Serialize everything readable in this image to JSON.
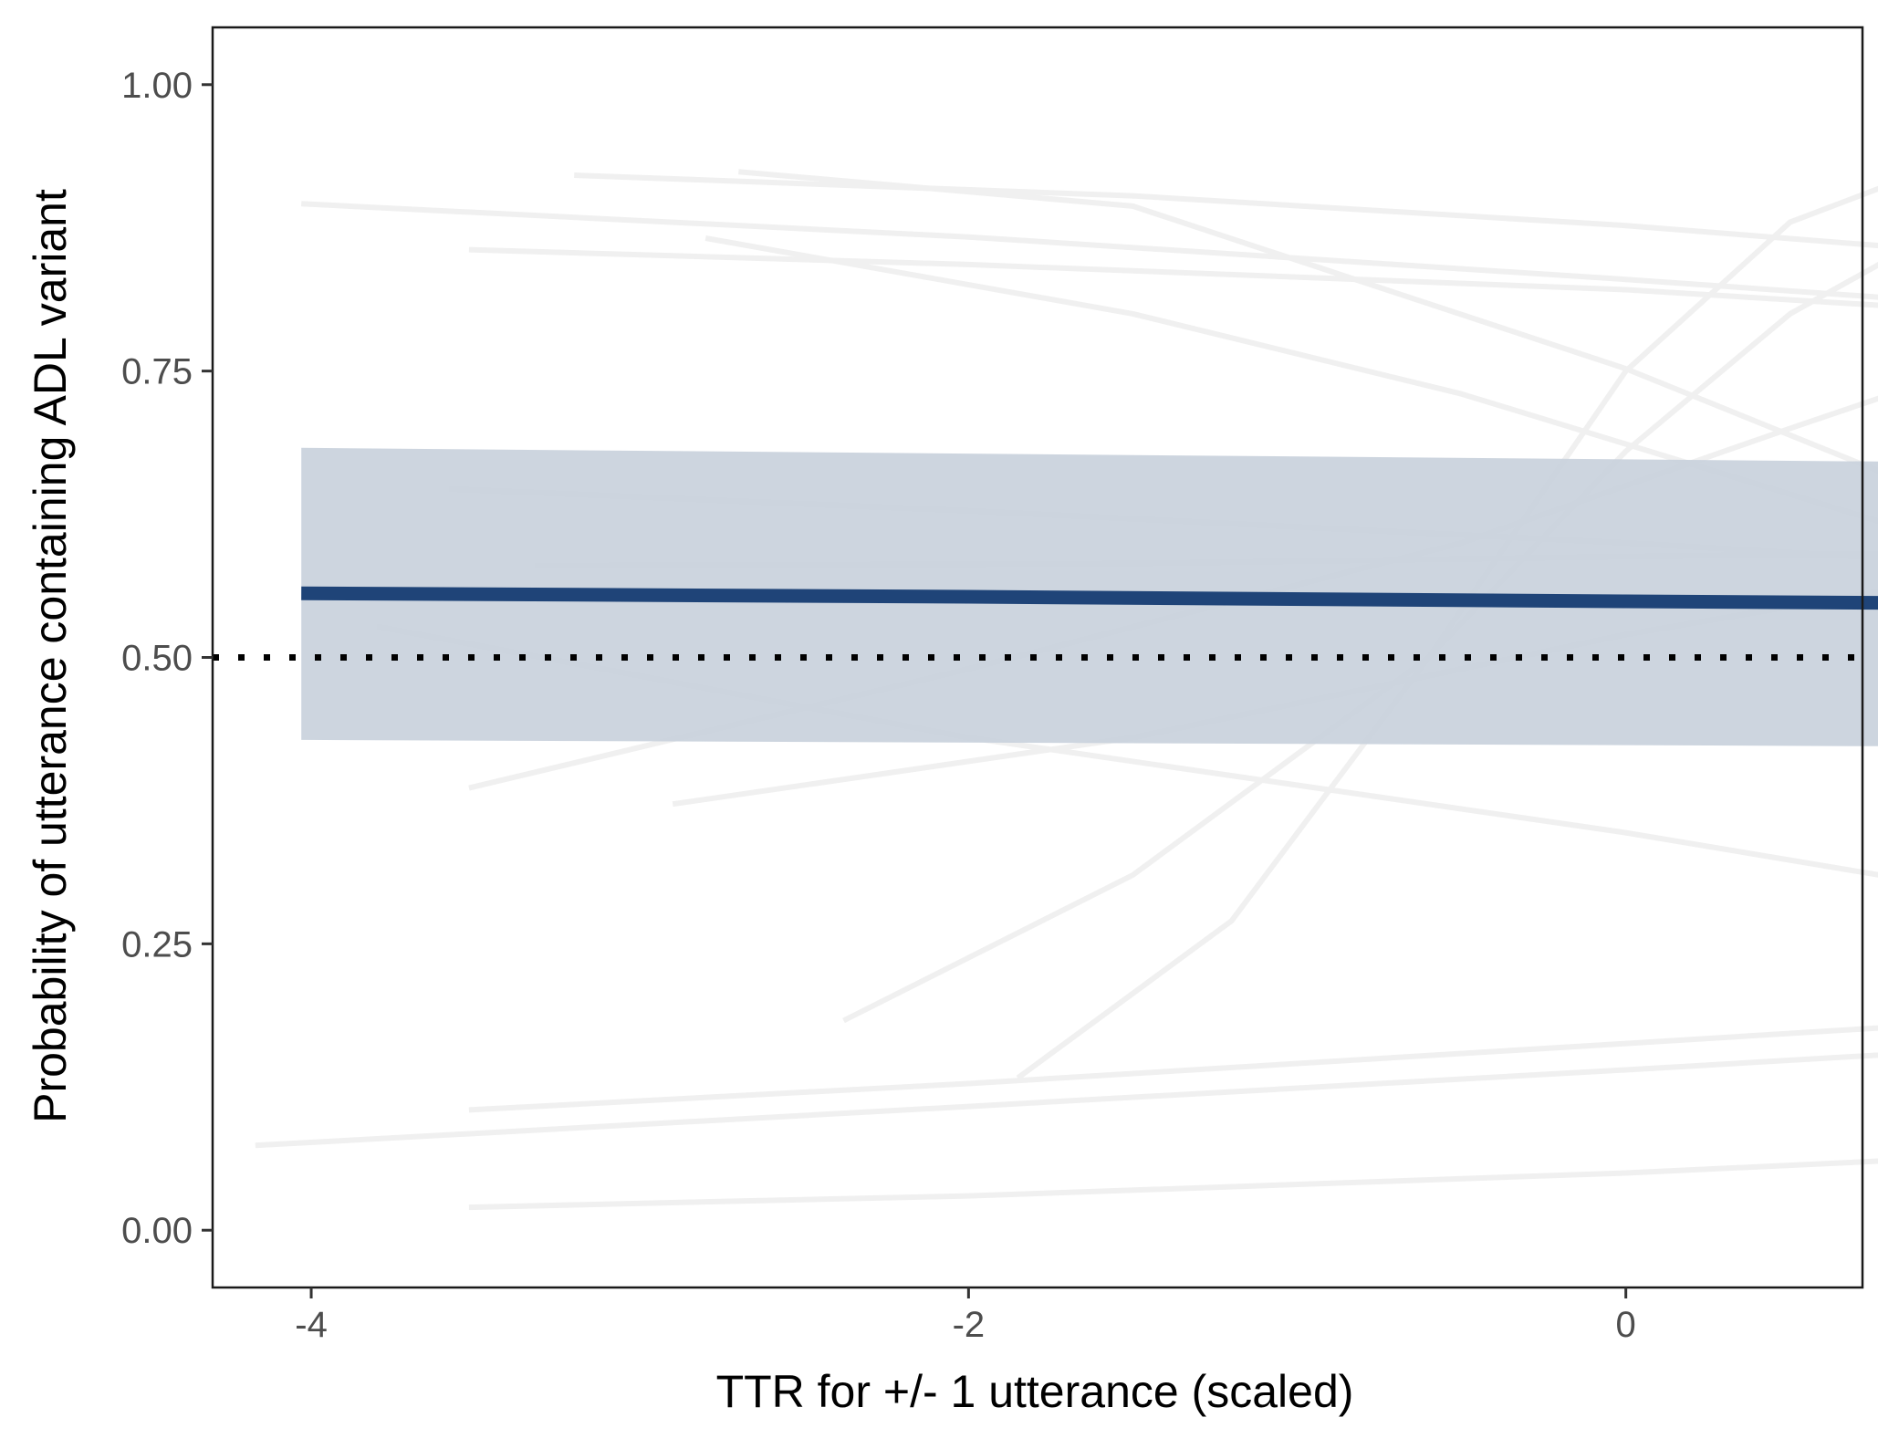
{
  "chart_data": {
    "type": "line",
    "title": "",
    "xlabel": "TTR for +/- 1 utterance (scaled)",
    "ylabel": "Probability of utterance containing ADL variant",
    "xlim": [
      -4.3,
      0.72
    ],
    "ylim": [
      -0.05,
      1.05
    ],
    "x_ticks": [
      -4,
      -2,
      0
    ],
    "x_tick_labels": [
      "-4",
      "-2",
      "0"
    ],
    "y_ticks": [
      0,
      0.25,
      0.5,
      0.75,
      1
    ],
    "y_tick_labels": [
      "0.00",
      "0.25",
      "0.50",
      "0.75",
      "1.00"
    ],
    "grid": false,
    "reference_line": {
      "y": 0.5,
      "style": "dotted",
      "color": "#000000"
    },
    "colors": {
      "mean_line": "#1f4478",
      "ribbon": "#c6cfdb",
      "individual_lines": "#f0f0f0",
      "panel_border": "#1a1a1a"
    },
    "ribbon": {
      "x": [
        -4.03,
        1.19
      ],
      "lower": [
        0.428,
        0.422
      ],
      "upper": [
        0.683,
        0.67
      ]
    },
    "mean_series": {
      "x": [
        -4.03,
        -2.0,
        0.0,
        1.19
      ],
      "y": [
        0.556,
        0.553,
        0.549,
        0.547
      ]
    },
    "individual_series": [
      {
        "x": [
          -3.2,
          -1.5,
          0.0,
          1.19
        ],
        "y": [
          0.921,
          0.903,
          0.877,
          0.85
        ]
      },
      {
        "x": [
          -4.03,
          -2.0,
          0.0,
          1.19
        ],
        "y": [
          0.896,
          0.867,
          0.83,
          0.806
        ]
      },
      {
        "x": [
          -3.52,
          -2.0,
          0.0,
          1.19
        ],
        "y": [
          0.856,
          0.843,
          0.821,
          0.8
        ]
      },
      {
        "x": [
          -2.7,
          -1.5,
          0.0,
          1.19
        ],
        "y": [
          0.924,
          0.894,
          0.752,
          0.614
        ]
      },
      {
        "x": [
          -2.8,
          -1.5,
          -0.5,
          0.3,
          1.19
        ],
        "y": [
          0.866,
          0.8,
          0.73,
          0.66,
          0.582
        ]
      },
      {
        "x": [
          -3.58,
          -2.0,
          0.0,
          1.19
        ],
        "y": [
          0.647,
          0.628,
          0.6,
          0.58
        ]
      },
      {
        "x": [
          -3.32,
          -1.5,
          0.0,
          1.19
        ],
        "y": [
          0.58,
          0.582,
          0.588,
          0.592
        ]
      },
      {
        "x": [
          -3.52,
          -2.0,
          -0.5,
          0.5,
          1.19
        ],
        "y": [
          0.386,
          0.49,
          0.6,
          0.7,
          0.767
        ]
      },
      {
        "x": [
          -2.9,
          -1.5,
          0.0,
          1.19
        ],
        "y": [
          0.372,
          0.43,
          0.52,
          0.578
        ]
      },
      {
        "x": [
          -3.8,
          -2.0,
          0.0,
          1.19
        ],
        "y": [
          0.527,
          0.43,
          0.347,
          0.29
        ]
      },
      {
        "x": [
          -2.38,
          -1.5,
          -0.6,
          0.0,
          0.5,
          1.19
        ],
        "y": [
          0.183,
          0.31,
          0.5,
          0.68,
          0.8,
          0.91
        ]
      },
      {
        "x": [
          -1.85,
          -1.2,
          -0.6,
          0.0,
          0.5,
          1.19
        ],
        "y": [
          0.133,
          0.27,
          0.5,
          0.75,
          0.88,
          0.955
        ]
      },
      {
        "x": [
          -4.17,
          -2.0,
          0.0,
          1.19
        ],
        "y": [
          0.074,
          0.108,
          0.14,
          0.16
        ]
      },
      {
        "x": [
          -3.52,
          -2.0,
          0.0,
          1.19
        ],
        "y": [
          0.105,
          0.128,
          0.163,
          0.184
        ]
      },
      {
        "x": [
          -3.52,
          -2.0,
          0.0,
          1.19
        ],
        "y": [
          0.02,
          0.03,
          0.05,
          0.066
        ]
      }
    ]
  }
}
